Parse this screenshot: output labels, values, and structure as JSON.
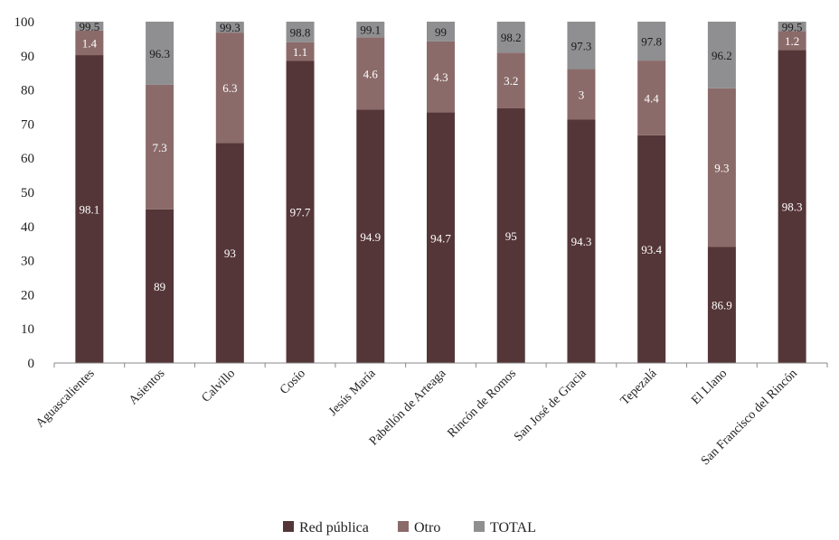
{
  "chart_data": {
    "type": "bar",
    "stacked": true,
    "categories": [
      "Aguascalientes",
      "Asientos",
      "Calvillo",
      "Cosío",
      "Jesús María",
      "Pabellón de Arteaga",
      "Rincón de Romos",
      "San José de Gracia",
      "Tepezalá",
      "El Llano",
      "San Francisco del Rincón"
    ],
    "series": [
      {
        "name": "Red pública",
        "color": "#553638",
        "values": [
          90.2,
          45.0,
          64.5,
          88.5,
          74.2,
          73.4,
          74.6,
          71.3,
          66.7,
          34.0,
          91.7
        ],
        "labels": [
          "98.1",
          "89",
          "93",
          "97.7",
          "94.9",
          "94.7",
          "95",
          "94.3",
          "93.4",
          "86.9",
          "98.3"
        ],
        "label_text_color": "#ffffff"
      },
      {
        "name": "Otro",
        "color": "#8b6b6a",
        "values": [
          7.2,
          36.5,
          32.3,
          5.5,
          21.2,
          20.8,
          16.3,
          14.8,
          21.9,
          46.5,
          5.5
        ],
        "labels": [
          "1.4",
          "7.3",
          "6.3",
          "1.1",
          "4.6",
          "4.3",
          "3.2",
          "3",
          "4.4",
          "9.3",
          "1.2"
        ],
        "label_text_color": "#ffffff"
      },
      {
        "name": "TOTAL",
        "color": "#8f8f91",
        "values": [
          2.6,
          18.5,
          3.2,
          6.0,
          4.6,
          5.8,
          9.1,
          13.9,
          11.4,
          19.5,
          2.8
        ],
        "labels": [
          "99.5",
          "96.3",
          "99.3",
          "98.8",
          "99.1",
          "99",
          "98.2",
          "97.3",
          "97.8",
          "96.2",
          "99.5"
        ],
        "label_text_color": "#1a1a1a"
      }
    ],
    "ylim": [
      0,
      100
    ],
    "yticks": [
      0,
      10,
      20,
      30,
      40,
      50,
      60,
      70,
      80,
      90,
      100
    ],
    "legend_position": "bottom",
    "grid": false
  }
}
